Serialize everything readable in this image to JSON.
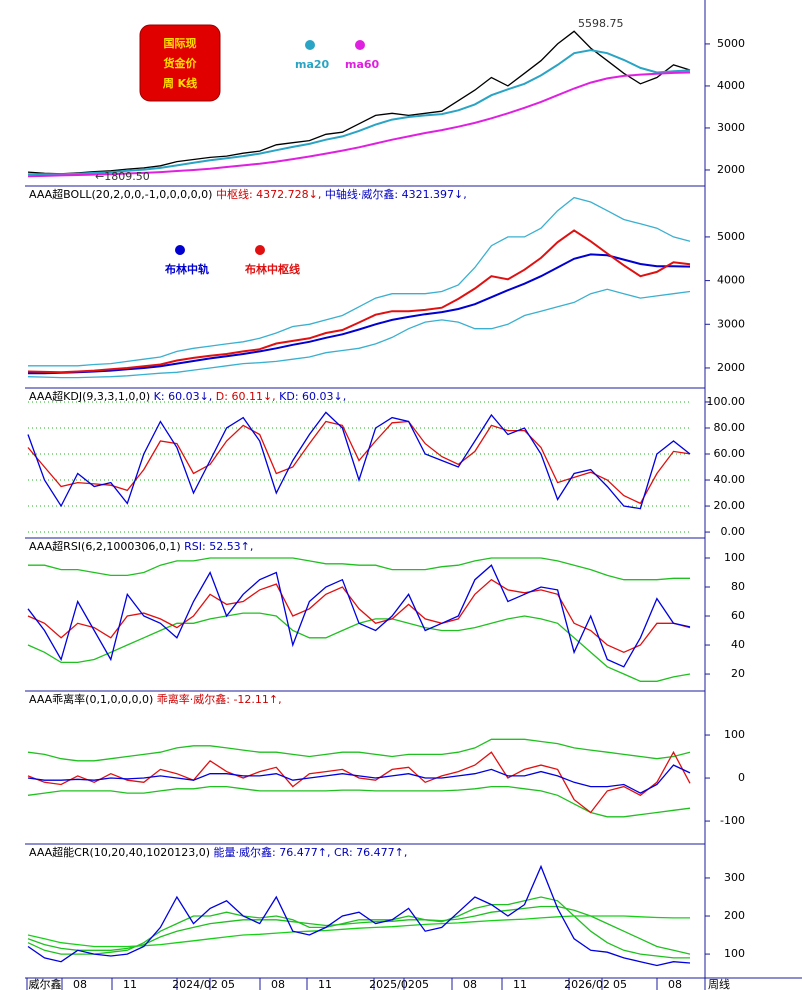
{
  "logo": [
    "国际现",
    "货金价",
    "周  K线"
  ],
  "x_axis": {
    "labels": [
      "威尔鑫",
      "08",
      "11",
      "2024/02",
      "05",
      "08",
      "11",
      "2025/02",
      "05",
      "08",
      "11",
      "2026/02",
      "05",
      "08"
    ],
    "corner": "周线"
  },
  "chart_data": [
    {
      "type": "line",
      "ylim": [
        1690,
        5760
      ],
      "yticks": [
        2000,
        3000,
        4000,
        5000
      ],
      "annotations": [
        "5598.75",
        "←1809.50"
      ],
      "series": [
        {
          "color": "#000000",
          "values": [
            1950,
            1920,
            1910,
            1930,
            1960,
            1980,
            2020,
            2050,
            2100,
            2200,
            2250,
            2300,
            2330,
            2400,
            2450,
            2600,
            2650,
            2700,
            2850,
            2900,
            3100,
            3300,
            3350,
            3300,
            3350,
            3400,
            3650,
            3900,
            4200,
            4000,
            4300,
            4600,
            5000,
            5300,
            4900,
            4600,
            4300,
            4050,
            4200,
            4500,
            4380
          ]
        },
        {
          "name": "ma20",
          "color": "#2aa4c4",
          "values": [
            1900,
            1900,
            1900,
            1910,
            1930,
            1950,
            1980,
            2010,
            2050,
            2110,
            2170,
            2230,
            2280,
            2330,
            2390,
            2470,
            2550,
            2620,
            2720,
            2800,
            2930,
            3080,
            3200,
            3260,
            3300,
            3330,
            3420,
            3560,
            3780,
            3920,
            4050,
            4250,
            4500,
            4780,
            4850,
            4780,
            4620,
            4430,
            4320,
            4350,
            4370
          ]
        },
        {
          "name": "ma60",
          "color": "#e020e0",
          "values": [
            1850,
            1860,
            1870,
            1880,
            1890,
            1900,
            1915,
            1930,
            1950,
            1975,
            2000,
            2030,
            2070,
            2110,
            2150,
            2200,
            2260,
            2320,
            2390,
            2460,
            2540,
            2630,
            2720,
            2800,
            2880,
            2950,
            3030,
            3120,
            3230,
            3350,
            3480,
            3620,
            3780,
            3940,
            4080,
            4180,
            4240,
            4270,
            4290,
            4310,
            4321
          ]
        }
      ]
    },
    {
      "type": "line",
      "ylim": [
        1610,
        6120
      ],
      "yticks": [
        2000,
        3000,
        4000,
        5000
      ],
      "header": [
        {
          "text": "AAA超BOLL(20,2,0,0,-1,0,0,0,0,0)",
          "color": "#000000"
        },
        {
          "text": " 中枢线: 4372.728↓,",
          "color": "#d00000"
        },
        {
          "text": " 中轴线·威尔鑫: 4321.397↓,",
          "color": "#0000c0"
        }
      ],
      "series": [
        {
          "color": "#3ab0d0",
          "values": [
            2050,
            2050,
            2050,
            2050,
            2080,
            2100,
            2150,
            2200,
            2250,
            2380,
            2450,
            2500,
            2550,
            2600,
            2680,
            2800,
            2950,
            3000,
            3100,
            3200,
            3400,
            3600,
            3700,
            3700,
            3700,
            3750,
            3900,
            4300,
            4800,
            5000,
            5000,
            5200,
            5600,
            5900,
            5800,
            5600,
            5400,
            5300,
            5200,
            5000,
            4900
          ]
        },
        {
          "color": "#3ab0d0",
          "values": [
            1800,
            1790,
            1780,
            1780,
            1790,
            1800,
            1820,
            1850,
            1880,
            1900,
            1950,
            2000,
            2050,
            2100,
            2120,
            2150,
            2200,
            2250,
            2350,
            2400,
            2450,
            2550,
            2700,
            2900,
            3050,
            3100,
            3050,
            2900,
            2900,
            3000,
            3200,
            3300,
            3400,
            3500,
            3700,
            3800,
            3700,
            3600,
            3650,
            3700,
            3750
          ]
        },
        {
          "name": "布林中轨",
          "color": "#0000d0",
          "values": [
            1880,
            1880,
            1890,
            1900,
            1920,
            1940,
            1970,
            2000,
            2040,
            2100,
            2160,
            2220,
            2270,
            2320,
            2380,
            2450,
            2530,
            2600,
            2690,
            2770,
            2880,
            3000,
            3100,
            3170,
            3230,
            3280,
            3350,
            3460,
            3620,
            3780,
            3930,
            4100,
            4300,
            4500,
            4600,
            4580,
            4480,
            4380,
            4330,
            4330,
            4321.397
          ]
        },
        {
          "name": "布林中枢线",
          "color": "#e01010",
          "values": [
            1920,
            1910,
            1900,
            1920,
            1940,
            1970,
            2000,
            2040,
            2080,
            2170,
            2230,
            2280,
            2320,
            2380,
            2430,
            2560,
            2620,
            2680,
            2800,
            2870,
            3040,
            3220,
            3300,
            3300,
            3330,
            3380,
            3580,
            3820,
            4100,
            4030,
            4250,
            4520,
            4880,
            5150,
            4900,
            4620,
            4350,
            4100,
            4200,
            4420,
            4372.728
          ]
        }
      ]
    },
    {
      "type": "line",
      "ylim": [
        -3.8,
        109.2
      ],
      "grid": true,
      "yticks": [
        {
          "value": 0,
          "label": "0.00"
        },
        {
          "value": 20,
          "label": "20.00"
        },
        {
          "value": 40,
          "label": "40.00"
        },
        {
          "value": 60,
          "label": "60.00"
        },
        {
          "value": 80,
          "label": "80.00"
        },
        {
          "value": 100,
          "label": "100.00"
        }
      ],
      "header": [
        {
          "text": "AAA超KDJ(9,3,3,1,0,0)",
          "color": "#000000"
        },
        {
          "text": " K: 60.03↓,",
          "color": "#0000c0"
        },
        {
          "text": " D: 60.11↓,",
          "color": "#d00000"
        },
        {
          "text": " KD: 60.03↓,",
          "color": "#0000c0"
        }
      ],
      "series": [
        {
          "color": "#e01010",
          "values": [
            65,
            50,
            35,
            38,
            37,
            36,
            32,
            48,
            70,
            68,
            45,
            52,
            70,
            82,
            75,
            45,
            50,
            68,
            85,
            82,
            55,
            70,
            84,
            85,
            68,
            58,
            52,
            62,
            82,
            78,
            78,
            65,
            38,
            42,
            46,
            40,
            28,
            22,
            45,
            62,
            60.11
          ]
        },
        {
          "color": "#0000e0",
          "values": [
            75,
            40,
            20,
            45,
            35,
            38,
            22,
            60,
            85,
            65,
            30,
            55,
            80,
            88,
            70,
            30,
            55,
            75,
            92,
            80,
            40,
            80,
            88,
            85,
            60,
            55,
            50,
            70,
            90,
            75,
            80,
            60,
            25,
            45,
            48,
            35,
            20,
            18,
            60,
            70,
            60.03
          ]
        }
      ]
    },
    {
      "type": "line",
      "ylim": [
        9,
        112.4
      ],
      "yticks": [
        20,
        40,
        60,
        80,
        100
      ],
      "header": [
        {
          "text": "AAA超RSI(6,2,1000306,0,1)",
          "color": "#000000"
        },
        {
          "text": " RSI: 52.53↑,",
          "color": "#0000c0"
        }
      ],
      "series": [
        {
          "color": "#20c020",
          "values": [
            95,
            95,
            92,
            92,
            90,
            88,
            88,
            90,
            95,
            98,
            98,
            100,
            100,
            100,
            100,
            100,
            100,
            98,
            96,
            96,
            95,
            95,
            92,
            92,
            92,
            94,
            95,
            98,
            100,
            100,
            100,
            100,
            98,
            95,
            92,
            88,
            85,
            85,
            85,
            86,
            86
          ]
        },
        {
          "color": "#20c020",
          "values": [
            40,
            35,
            28,
            28,
            30,
            35,
            40,
            45,
            50,
            55,
            55,
            58,
            60,
            62,
            62,
            60,
            50,
            45,
            45,
            50,
            55,
            58,
            58,
            55,
            52,
            50,
            50,
            52,
            55,
            58,
            60,
            58,
            55,
            45,
            35,
            25,
            20,
            15,
            15,
            18,
            20
          ]
        },
        {
          "color": "#e01010",
          "values": [
            60,
            55,
            45,
            55,
            52,
            45,
            60,
            62,
            58,
            52,
            60,
            75,
            68,
            70,
            78,
            82,
            60,
            65,
            75,
            80,
            65,
            55,
            58,
            68,
            58,
            55,
            58,
            75,
            85,
            78,
            76,
            78,
            75,
            55,
            50,
            40,
            35,
            40,
            55,
            55,
            52
          ]
        },
        {
          "color": "#0000e0",
          "values": [
            65,
            50,
            30,
            70,
            50,
            30,
            75,
            60,
            55,
            45,
            70,
            90,
            60,
            75,
            85,
            90,
            40,
            70,
            80,
            85,
            55,
            50,
            60,
            75,
            50,
            55,
            60,
            85,
            95,
            70,
            75,
            80,
            78,
            35,
            60,
            30,
            25,
            45,
            72,
            55,
            52.53
          ]
        }
      ]
    },
    {
      "type": "line",
      "ylim": [
        -151,
        197.7
      ],
      "yticks": [
        -100,
        0,
        100
      ],
      "header": [
        {
          "text": "AAA乖离率(0,1,0,0,0,0)",
          "color": "#000000"
        },
        {
          "text": " 乖离率·威尔鑫: -12.11↑,",
          "color": "#d00000"
        }
      ],
      "series": [
        {
          "color": "#20c020",
          "values": [
            60,
            55,
            45,
            40,
            40,
            45,
            50,
            55,
            60,
            70,
            75,
            75,
            70,
            65,
            60,
            60,
            55,
            50,
            55,
            60,
            60,
            55,
            50,
            55,
            55,
            55,
            60,
            70,
            90,
            90,
            90,
            85,
            80,
            70,
            65,
            60,
            55,
            50,
            45,
            50,
            60
          ]
        },
        {
          "color": "#20c020",
          "values": [
            -40,
            -35,
            -30,
            -30,
            -30,
            -30,
            -35,
            -35,
            -30,
            -25,
            -25,
            -20,
            -20,
            -25,
            -30,
            -30,
            -30,
            -30,
            -30,
            -28,
            -28,
            -30,
            -30,
            -30,
            -30,
            -30,
            -28,
            -25,
            -20,
            -20,
            -25,
            -30,
            -40,
            -60,
            -80,
            -90,
            -90,
            -85,
            -80,
            -75,
            -70
          ]
        },
        {
          "color": "#e01010",
          "values": [
            5,
            -10,
            -15,
            5,
            -10,
            10,
            -5,
            -10,
            20,
            10,
            -5,
            40,
            15,
            0,
            15,
            25,
            -20,
            10,
            15,
            20,
            0,
            -5,
            20,
            25,
            -10,
            5,
            15,
            30,
            60,
            0,
            20,
            30,
            20,
            -50,
            -80,
            -30,
            -20,
            -40,
            -10,
            60,
            -12.11
          ]
        },
        {
          "color": "#0000e0",
          "values": [
            0,
            -5,
            -5,
            -3,
            -5,
            0,
            -2,
            0,
            5,
            0,
            -5,
            10,
            10,
            5,
            5,
            10,
            -5,
            0,
            5,
            10,
            5,
            0,
            5,
            10,
            0,
            0,
            5,
            10,
            20,
            5,
            5,
            15,
            5,
            -10,
            -20,
            -20,
            -15,
            -35,
            -15,
            30,
            12
          ]
        }
      ]
    },
    {
      "type": "line",
      "ylim": [
        45,
        384
      ],
      "yticks": [
        100,
        200,
        300
      ],
      "header": [
        {
          "text": "AAA超能CR(10,20,40,1020123,0)",
          "color": "#000000"
        },
        {
          "text": " 能量·威尔鑫: 76.477↑,",
          "color": "#0000c0"
        },
        {
          "text": " CR: 76.477↑,",
          "color": "#0000c0"
        }
      ],
      "series": [
        {
          "color": "#20c020",
          "values": [
            130,
            110,
            100,
            100,
            100,
            105,
            110,
            130,
            160,
            180,
            200,
            200,
            210,
            200,
            195,
            200,
            190,
            170,
            170,
            180,
            190,
            190,
            190,
            200,
            190,
            185,
            200,
            220,
            230,
            230,
            240,
            250,
            240,
            200,
            160,
            130,
            110,
            100,
            95,
            90,
            90
          ]
        },
        {
          "color": "#20c020",
          "values": [
            140,
            125,
            115,
            110,
            110,
            110,
            115,
            125,
            145,
            160,
            170,
            180,
            185,
            190,
            190,
            190,
            185,
            180,
            175,
            178,
            182,
            185,
            186,
            190,
            190,
            188,
            192,
            200,
            210,
            215,
            220,
            225,
            225,
            215,
            200,
            180,
            160,
            140,
            120,
            110,
            100
          ]
        },
        {
          "color": "#18d018",
          "values": [
            150,
            140,
            130,
            125,
            120,
            120,
            120,
            122,
            125,
            130,
            135,
            140,
            145,
            150,
            152,
            155,
            158,
            160,
            162,
            165,
            168,
            170,
            172,
            175,
            178,
            180,
            182,
            185,
            188,
            190,
            192,
            195,
            198,
            200,
            200,
            200,
            200,
            198,
            196,
            195,
            195
          ]
        },
        {
          "color": "#0000e0",
          "values": [
            120,
            90,
            80,
            110,
            100,
            95,
            100,
            120,
            170,
            250,
            180,
            220,
            240,
            200,
            180,
            250,
            160,
            150,
            170,
            200,
            210,
            180,
            190,
            220,
            160,
            170,
            210,
            250,
            230,
            200,
            230,
            330,
            220,
            140,
            110,
            105,
            90,
            80,
            70,
            80,
            76.477
          ]
        }
      ]
    }
  ]
}
